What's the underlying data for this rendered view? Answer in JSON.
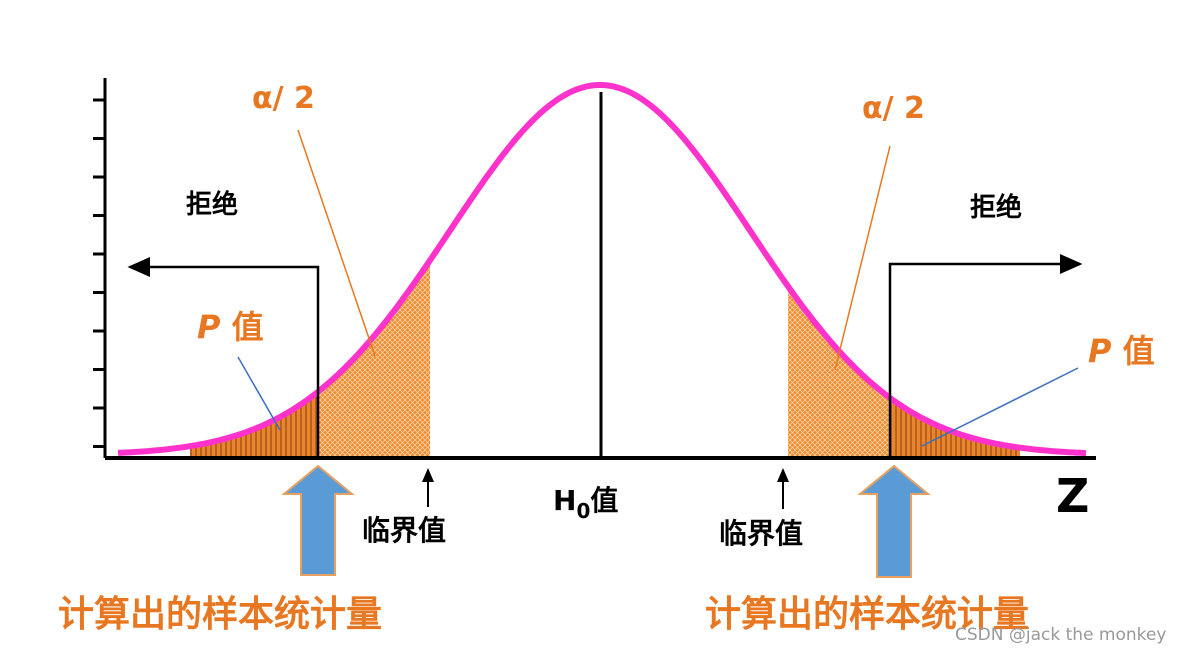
{
  "labels": {
    "alpha_left": "α/ 2",
    "alpha_right": "α/ 2",
    "reject_left": "拒绝",
    "reject_right": "拒绝",
    "p_left": {
      "symbol": "P",
      "suffix": "值"
    },
    "p_right": {
      "symbol": "P",
      "suffix": "值"
    },
    "critical_left": "临界值",
    "critical_right": "临界值",
    "h0": {
      "main": "H",
      "sub": "0",
      "suffix": "值"
    },
    "axis_z": "Z",
    "statistic_left": "计算出的样本统计量",
    "statistic_right": "计算出的样本统计量",
    "watermark": "CSDN @jack the monkey"
  }
}
